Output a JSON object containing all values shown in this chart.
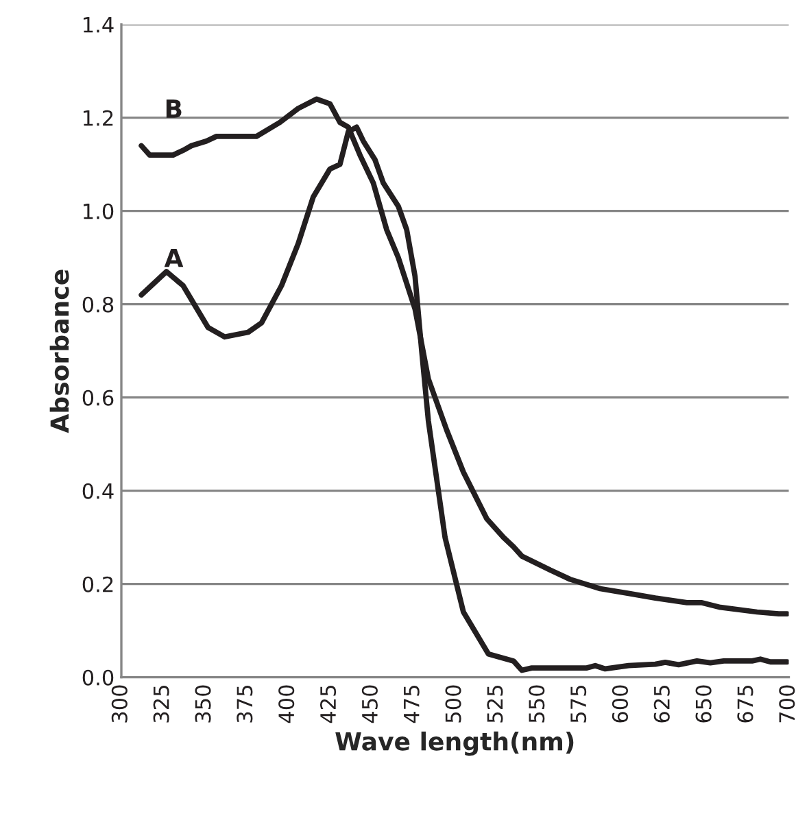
{
  "chart_data": {
    "type": "line",
    "xlabel": "Wave length(nm)",
    "ylabel": "Absorbance",
    "xlim": [
      300,
      700
    ],
    "xticks": [
      300,
      325,
      350,
      375,
      400,
      425,
      450,
      475,
      500,
      525,
      550,
      575,
      600,
      625,
      650,
      675,
      700
    ],
    "ylim": [
      0,
      1.4
    ],
    "yticks": [
      {
        "value": 0,
        "label": "0.0"
      },
      {
        "value": 0.2,
        "label": "0.2"
      },
      {
        "value": 0.4,
        "label": "0.4"
      },
      {
        "value": 0.6,
        "label": "0.6"
      },
      {
        "value": 0.8,
        "label": "0.8"
      },
      {
        "value": 1.0,
        "label": "1.0"
      },
      {
        "value": 1.2,
        "label": "1.2"
      },
      {
        "value": 1.4,
        "label": "1.4"
      }
    ],
    "grid": "y",
    "legend": false,
    "marker": "none",
    "line_style": "solid",
    "series": [
      {
        "name": "A",
        "color": "#231f20",
        "x": [
          312,
          327,
          337,
          352,
          362,
          376,
          384,
          396,
          406,
          415,
          425,
          431,
          436,
          441,
          445,
          452,
          457,
          466,
          471,
          476,
          480,
          484,
          494,
          505,
          520,
          535,
          540,
          546,
          579,
          584,
          590,
          604,
          620,
          626,
          634,
          645,
          653,
          661,
          678,
          683,
          689,
          699
        ],
        "values": [
          0.82,
          0.87,
          0.84,
          0.75,
          0.73,
          0.74,
          0.76,
          0.84,
          0.93,
          1.03,
          1.09,
          1.1,
          1.17,
          1.18,
          1.15,
          1.11,
          1.06,
          1.01,
          0.96,
          0.86,
          0.7,
          0.55,
          0.3,
          0.14,
          0.05,
          0.035,
          0.015,
          0.02,
          0.02,
          0.025,
          0.018,
          0.025,
          0.028,
          0.032,
          0.027,
          0.035,
          0.031,
          0.035,
          0.035,
          0.039,
          0.033,
          0.033
        ]
      },
      {
        "name": "B",
        "color": "#231f20",
        "x": [
          312,
          317,
          323,
          331,
          337,
          342,
          351,
          357,
          381,
          395,
          406,
          417,
          425,
          431,
          436,
          443,
          451,
          459,
          466,
          476,
          484,
          495,
          505,
          519,
          529,
          535,
          540,
          557,
          569,
          587,
          604,
          620,
          639,
          648,
          659,
          681,
          694,
          699
        ],
        "values": [
          1.14,
          1.12,
          1.12,
          1.12,
          1.13,
          1.14,
          1.15,
          1.16,
          1.16,
          1.19,
          1.22,
          1.24,
          1.23,
          1.19,
          1.18,
          1.12,
          1.06,
          0.96,
          0.9,
          0.79,
          0.64,
          0.53,
          0.44,
          0.34,
          0.3,
          0.28,
          0.26,
          0.23,
          0.21,
          0.19,
          0.18,
          0.17,
          0.16,
          0.16,
          0.15,
          0.14,
          0.136,
          0.136
        ]
      }
    ]
  }
}
